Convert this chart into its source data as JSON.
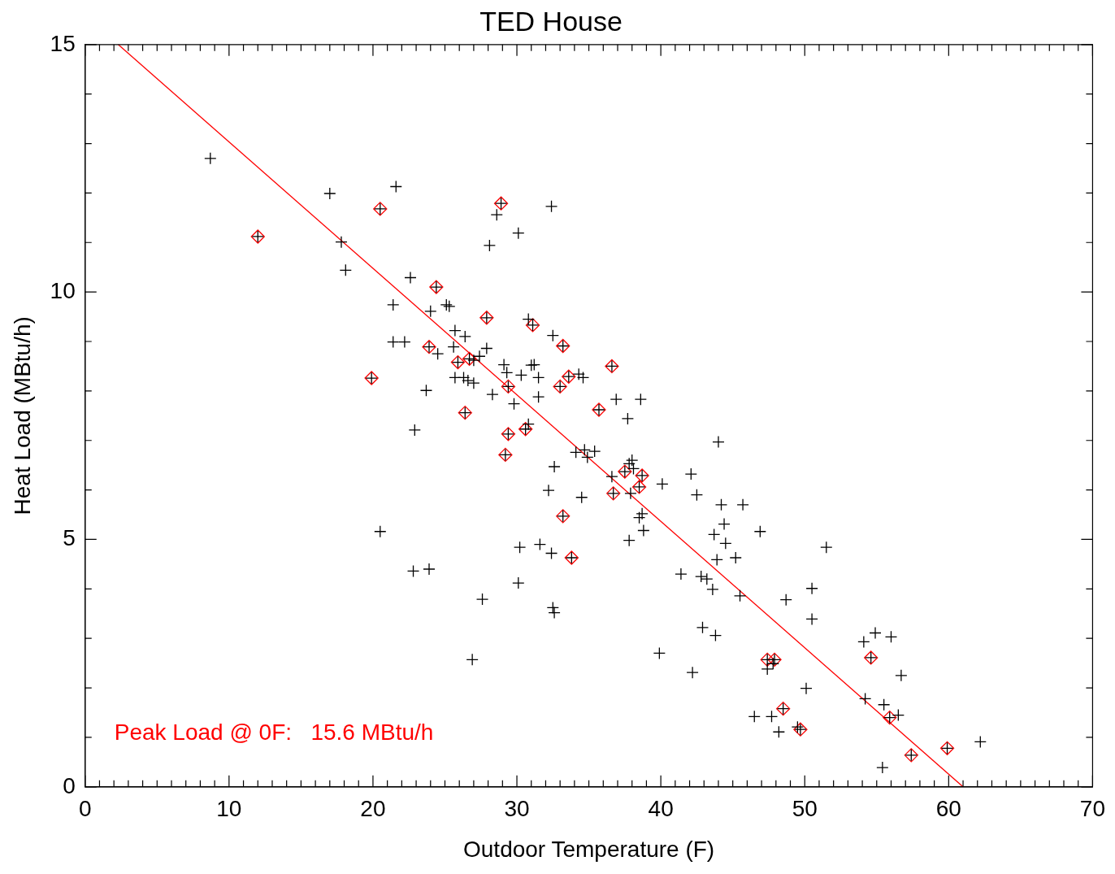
{
  "chart_data": {
    "type": "scatter",
    "title": "TED House",
    "xlabel": "Outdoor Temperature (F)",
    "ylabel": "Heat Load (MBtu/h)",
    "annotations": [
      "Peak Load @ 0F:   15.6 MBtu/h"
    ],
    "xlim": [
      0,
      70
    ],
    "ylim": [
      0,
      15
    ],
    "xticks": [
      0,
      {
        "value": 1,
        "label": null
      },
      {
        "value": 2,
        "label": null
      },
      {
        "value": 3,
        "label": null
      },
      {
        "value": 4,
        "label": null
      },
      {
        "value": 5,
        "label": null
      },
      {
        "value": 6,
        "label": null
      },
      {
        "value": 7,
        "label": null
      },
      {
        "value": 8,
        "label": null
      },
      {
        "value": 9,
        "label": null
      },
      10,
      {
        "value": 11,
        "label": null
      },
      {
        "value": 12,
        "label": null
      },
      {
        "value": 13,
        "label": null
      },
      {
        "value": 14,
        "label": null
      },
      {
        "value": 15,
        "label": null
      },
      {
        "value": 16,
        "label": null
      },
      {
        "value": 17,
        "label": null
      },
      {
        "value": 18,
        "label": null
      },
      {
        "value": 19,
        "label": null
      },
      20,
      {
        "value": 21,
        "label": null
      },
      {
        "value": 22,
        "label": null
      },
      {
        "value": 23,
        "label": null
      },
      {
        "value": 24,
        "label": null
      },
      {
        "value": 25,
        "label": null
      },
      {
        "value": 26,
        "label": null
      },
      {
        "value": 27,
        "label": null
      },
      {
        "value": 28,
        "label": null
      },
      {
        "value": 29,
        "label": null
      },
      30,
      {
        "value": 31,
        "label": null
      },
      {
        "value": 32,
        "label": null
      },
      {
        "value": 33,
        "label": null
      },
      {
        "value": 34,
        "label": null
      },
      {
        "value": 35,
        "label": null
      },
      {
        "value": 36,
        "label": null
      },
      {
        "value": 37,
        "label": null
      },
      {
        "value": 38,
        "label": null
      },
      {
        "value": 39,
        "label": null
      },
      40,
      {
        "value": 41,
        "label": null
      },
      {
        "value": 42,
        "label": null
      },
      {
        "value": 43,
        "label": null
      },
      {
        "value": 44,
        "label": null
      },
      {
        "value": 45,
        "label": null
      },
      {
        "value": 46,
        "label": null
      },
      {
        "value": 47,
        "label": null
      },
      {
        "value": 48,
        "label": null
      },
      {
        "value": 49,
        "label": null
      },
      50,
      {
        "value": 51,
        "label": null
      },
      {
        "value": 52,
        "label": null
      },
      {
        "value": 53,
        "label": null
      },
      {
        "value": 54,
        "label": null
      },
      {
        "value": 55,
        "label": null
      },
      {
        "value": 56,
        "label": null
      },
      {
        "value": 57,
        "label": null
      },
      {
        "value": 58,
        "label": null
      },
      {
        "value": 59,
        "label": null
      },
      60,
      {
        "value": 61,
        "label": null
      },
      {
        "value": 62,
        "label": null
      },
      {
        "value": 63,
        "label": null
      },
      {
        "value": 64,
        "label": null
      },
      {
        "value": 65,
        "label": null
      },
      {
        "value": 66,
        "label": null
      },
      {
        "value": 67,
        "label": null
      },
      {
        "value": 68,
        "label": null
      },
      {
        "value": 69,
        "label": null
      },
      70
    ],
    "yticks": [
      0,
      {
        "value": 1,
        "label": null
      },
      {
        "value": 2,
        "label": null
      },
      {
        "value": 3,
        "label": null
      },
      {
        "value": 4,
        "label": null
      },
      5,
      {
        "value": 6,
        "label": null
      },
      {
        "value": 7,
        "label": null
      },
      {
        "value": 8,
        "label": null
      },
      {
        "value": 9,
        "label": null
      },
      10,
      {
        "value": 11,
        "label": null
      },
      {
        "value": 12,
        "label": null
      },
      {
        "value": 13,
        "label": null
      },
      {
        "value": 14,
        "label": null
      },
      15
    ],
    "grid": false,
    "legend": false,
    "series": [
      {
        "marker": "cross",
        "color": "#000000",
        "x": [
          8.7,
          12.0,
          17.0,
          21.6,
          20.5,
          17.8,
          18.1,
          22.6,
          21.4,
          24.4,
          24.0,
          25.1,
          25.3,
          27.9,
          28.9,
          28.6,
          28.1,
          30.1,
          32.4,
          21.4,
          22.2,
          23.9,
          24.5,
          25.7,
          26.4,
          25.6,
          25.9,
          26.7,
          27.0,
          27.4,
          27.9,
          25.7,
          26.3,
          26.6,
          27.0,
          19.9,
          23.7,
          22.9,
          26.4,
          20.5,
          22.8,
          23.9,
          26.9,
          27.6,
          28.3,
          29.1,
          29.3,
          29.4,
          29.8,
          30.3,
          29.4,
          29.2,
          30.6,
          30.8,
          31.1,
          30.8,
          31.0,
          31.2,
          31.5,
          31.5,
          32.5,
          33.2,
          33.6,
          33.0,
          34.3,
          34.6,
          35.7,
          36.6,
          36.9,
          38.6,
          37.7,
          32.6,
          32.2,
          34.5,
          34.1,
          34.7,
          34.9,
          35.4,
          36.6,
          37.5,
          37.8,
          38.0,
          38.1,
          36.7,
          37.9,
          38.7,
          38.5,
          38.5,
          38.7,
          38.8,
          37.8,
          33.2,
          33.8,
          31.6,
          32.4,
          30.2,
          30.1,
          32.6,
          32.5,
          39.9,
          40.1,
          42.1,
          42.5,
          44.0,
          44.2,
          45.7,
          44.4,
          43.7,
          44.5,
          43.9,
          45.2,
          46.9,
          51.5,
          41.4,
          42.8,
          43.2,
          43.6,
          45.5,
          42.9,
          43.8,
          42.2,
          50.5,
          48.7,
          50.5,
          47.4,
          47.9,
          47.4,
          47.8,
          50.1,
          46.5,
          47.7,
          48.5,
          48.2,
          49.5,
          49.7,
          54.1,
          54.9,
          56.0,
          56.7,
          54.6,
          54.2,
          55.5,
          55.9,
          56.5,
          57.4,
          59.9,
          62.2,
          55.4
        ],
        "values": [
          12.7,
          11.12,
          11.99,
          12.13,
          11.68,
          11.01,
          10.44,
          10.29,
          9.74,
          10.1,
          9.61,
          9.74,
          9.71,
          9.48,
          11.79,
          11.56,
          10.94,
          11.19,
          11.73,
          8.99,
          8.99,
          8.89,
          8.75,
          9.22,
          9.1,
          8.89,
          8.58,
          8.65,
          8.62,
          8.7,
          8.86,
          8.27,
          8.27,
          8.21,
          8.16,
          8.26,
          8.01,
          7.21,
          7.56,
          5.16,
          4.36,
          4.4,
          2.57,
          3.79,
          7.93,
          8.53,
          8.37,
          8.09,
          7.74,
          8.32,
          7.13,
          6.71,
          7.23,
          7.33,
          9.33,
          9.45,
          8.52,
          8.53,
          8.27,
          7.88,
          9.12,
          8.91,
          8.29,
          8.09,
          8.34,
          8.27,
          7.62,
          8.5,
          7.83,
          7.83,
          7.44,
          6.47,
          5.99,
          5.85,
          6.76,
          6.81,
          6.66,
          6.78,
          6.27,
          6.37,
          6.53,
          6.6,
          6.43,
          5.93,
          5.93,
          6.29,
          6.06,
          5.44,
          5.52,
          5.18,
          4.98,
          5.47,
          4.63,
          4.9,
          4.72,
          4.84,
          4.12,
          3.52,
          3.62,
          2.7,
          6.12,
          6.32,
          5.9,
          6.97,
          5.7,
          5.7,
          5.31,
          5.1,
          4.92,
          4.59,
          4.63,
          5.16,
          4.84,
          4.3,
          4.25,
          4.2,
          3.99,
          3.86,
          3.22,
          3.06,
          2.31,
          4.01,
          3.78,
          3.39,
          2.57,
          2.57,
          2.38,
          2.49,
          1.99,
          1.42,
          1.42,
          1.58,
          1.11,
          1.21,
          1.16,
          2.93,
          3.11,
          3.03,
          2.25,
          2.61,
          1.78,
          1.66,
          1.4,
          1.45,
          0.64,
          0.78,
          0.91,
          0.39
        ]
      },
      {
        "marker": "diamond",
        "color": "#ff0000",
        "x": [
          12.0,
          20.5,
          24.4,
          27.9,
          28.9,
          23.9,
          25.9,
          26.7,
          19.9,
          26.4,
          29.4,
          29.4,
          29.2,
          30.6,
          31.1,
          33.2,
          33.6,
          33.0,
          35.7,
          36.6,
          37.5,
          36.7,
          38.7,
          38.5,
          33.2,
          33.8,
          47.4,
          47.9,
          48.5,
          49.7,
          54.6,
          55.9,
          57.4,
          59.9
        ],
        "values": [
          11.12,
          11.68,
          10.1,
          9.48,
          11.79,
          8.89,
          8.58,
          8.65,
          8.26,
          7.56,
          8.09,
          7.13,
          6.71,
          7.23,
          9.33,
          8.91,
          8.29,
          8.09,
          7.62,
          8.5,
          6.37,
          5.93,
          6.29,
          6.06,
          5.47,
          4.63,
          2.57,
          2.57,
          1.58,
          1.16,
          2.61,
          1.4,
          0.64,
          0.78
        ]
      },
      {
        "type": "line",
        "marker": "none",
        "line_style": "solid",
        "color": "#ff0000",
        "x": [
          2.3,
          61.0
        ],
        "values": [
          15.0,
          0.0
        ]
      }
    ]
  }
}
